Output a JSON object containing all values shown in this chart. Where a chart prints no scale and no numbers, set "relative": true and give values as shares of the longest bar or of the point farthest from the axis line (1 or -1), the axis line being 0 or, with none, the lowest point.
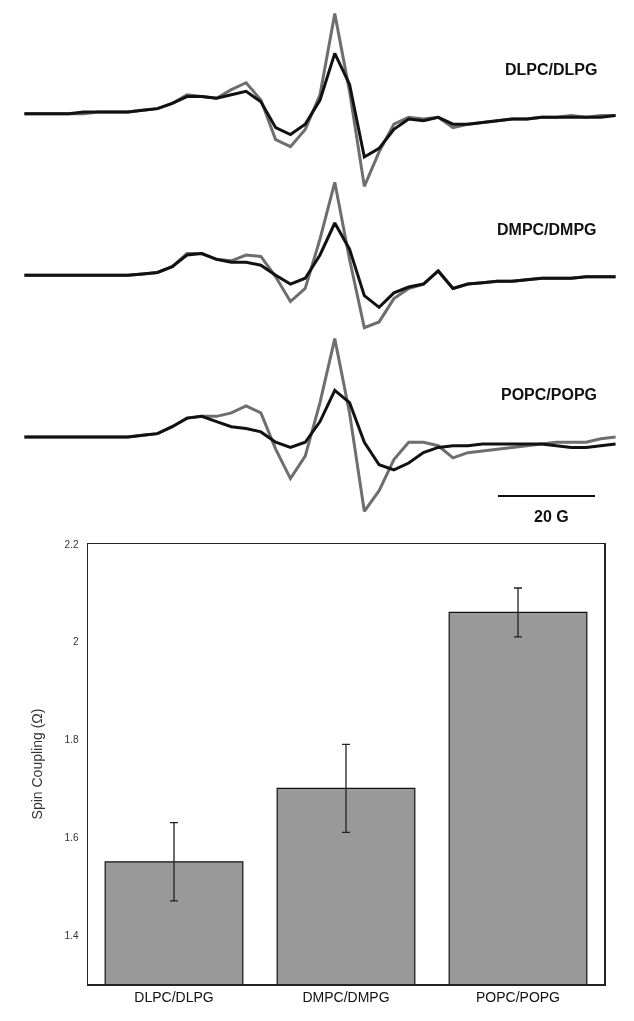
{
  "chart_data": [
    {
      "type": "line",
      "relative": true,
      "title": "DLPC/DLPG",
      "categories": [
        null,
        null,
        null,
        null,
        null,
        null,
        null,
        null,
        null,
        null,
        null,
        null,
        null,
        null,
        null,
        null,
        null,
        null,
        null,
        null,
        null,
        null,
        null,
        null,
        null,
        null,
        null,
        null,
        null,
        null,
        null,
        null,
        null,
        null,
        null,
        null,
        null,
        null,
        null,
        null,
        null
      ],
      "series": [
        {
          "color": "#6e6e6e",
          "values": [
            0.42,
            0.42,
            0.42,
            0.42,
            0.42,
            0.43,
            0.43,
            0.43,
            0.44,
            0.45,
            0.48,
            0.53,
            0.52,
            0.51,
            0.56,
            0.6,
            0.5,
            0.27,
            0.23,
            0.33,
            0.53,
            1.0,
            0.55,
            0,
            0.2,
            0.36,
            0.4,
            0.39,
            0.4,
            0.34,
            0.36,
            0.37,
            0.38,
            0.39,
            0.39,
            0.4,
            0.4,
            0.41,
            0.4,
            0.41,
            0.41
          ]
        },
        {
          "color": "#111111",
          "values": [
            0.42,
            0.42,
            0.42,
            0.42,
            0.43,
            0.43,
            0.43,
            0.43,
            0.44,
            0.45,
            0.48,
            0.52,
            0.52,
            0.51,
            0.53,
            0.55,
            0.49,
            0.34,
            0.3,
            0.36,
            0.5,
            0.77,
            0.59,
            0.17,
            0.22,
            0.33,
            0.39,
            0.38,
            0.4,
            0.36,
            0.36,
            0.37,
            0.38,
            0.39,
            0.39,
            0.4,
            0.4,
            0.4,
            0.4,
            0.4,
            0.41
          ]
        }
      ]
    },
    {
      "type": "line",
      "relative": true,
      "title": "DMPC/DMPG",
      "categories": [
        null,
        null,
        null,
        null,
        null,
        null,
        null,
        null,
        null,
        null,
        null,
        null,
        null,
        null,
        null,
        null,
        null,
        null,
        null,
        null,
        null,
        null,
        null,
        null,
        null,
        null,
        null,
        null,
        null,
        null,
        null,
        null,
        null,
        null,
        null,
        null,
        null,
        null,
        null,
        null,
        null
      ],
      "series": [
        {
          "color": "#6e6e6e",
          "values": [
            0.36,
            0.36,
            0.36,
            0.36,
            0.36,
            0.36,
            0.36,
            0.36,
            0.37,
            0.38,
            0.42,
            0.51,
            0.51,
            0.47,
            0.46,
            0.5,
            0.49,
            0.35,
            0.18,
            0.27,
            0.61,
            1.0,
            0.47,
            0,
            0.04,
            0.2,
            0.27,
            0.3,
            0.39,
            0.27,
            0.3,
            0.31,
            0.32,
            0.32,
            0.33,
            0.34,
            0.34,
            0.34,
            0.35,
            0.35,
            0.35
          ]
        },
        {
          "color": "#111111",
          "values": [
            0.36,
            0.36,
            0.36,
            0.36,
            0.36,
            0.36,
            0.36,
            0.36,
            0.37,
            0.38,
            0.42,
            0.5,
            0.51,
            0.47,
            0.45,
            0.45,
            0.43,
            0.36,
            0.3,
            0.34,
            0.5,
            0.72,
            0.54,
            0.22,
            0.14,
            0.24,
            0.28,
            0.3,
            0.39,
            0.27,
            0.3,
            0.31,
            0.32,
            0.32,
            0.33,
            0.34,
            0.34,
            0.34,
            0.35,
            0.35,
            0.35
          ]
        }
      ]
    },
    {
      "type": "line",
      "relative": true,
      "title": "POPC/POPG",
      "annotations": [
        "20 G"
      ],
      "categories": [
        null,
        null,
        null,
        null,
        null,
        null,
        null,
        null,
        null,
        null,
        null,
        null,
        null,
        null,
        null,
        null,
        null,
        null,
        null,
        null,
        null,
        null,
        null,
        null,
        null,
        null,
        null,
        null,
        null,
        null,
        null,
        null,
        null,
        null,
        null,
        null,
        null,
        null,
        null,
        null,
        null
      ],
      "series": [
        {
          "color": "#6e6e6e",
          "values": [
            0.43,
            0.43,
            0.43,
            0.43,
            0.43,
            0.43,
            0.43,
            0.43,
            0.44,
            0.45,
            0.49,
            0.54,
            0.55,
            0.55,
            0.57,
            0.61,
            0.57,
            0.36,
            0.19,
            0.32,
            0.63,
            1.0,
            0.57,
            0,
            0.12,
            0.3,
            0.4,
            0.4,
            0.38,
            0.31,
            0.34,
            0.35,
            0.36,
            0.37,
            0.38,
            0.39,
            0.4,
            0.4,
            0.4,
            0.42,
            0.43
          ]
        },
        {
          "color": "#111111",
          "values": [
            0.43,
            0.43,
            0.43,
            0.43,
            0.43,
            0.43,
            0.43,
            0.43,
            0.44,
            0.45,
            0.49,
            0.54,
            0.55,
            0.52,
            0.49,
            0.48,
            0.46,
            0.4,
            0.37,
            0.4,
            0.52,
            0.7,
            0.63,
            0.4,
            0.27,
            0.24,
            0.28,
            0.34,
            0.37,
            0.38,
            0.38,
            0.39,
            0.39,
            0.39,
            0.39,
            0.39,
            0.38,
            0.37,
            0.37,
            0.38,
            0.39
          ]
        }
      ]
    },
    {
      "type": "bar",
      "categories": [
        "DLPC/DLPG",
        "DMPC/DMPG",
        "POPC/POPG"
      ],
      "values": [
        1.55,
        1.7,
        2.06
      ],
      "errors": [
        0.08,
        0.09,
        0.05
      ],
      "color": "#999999",
      "ylabel": "Spin Coupling (Ω)",
      "ylim": [
        1.3,
        2.2
      ],
      "yticks": [
        1.4,
        1.6,
        1.8,
        2,
        2.2
      ]
    }
  ]
}
